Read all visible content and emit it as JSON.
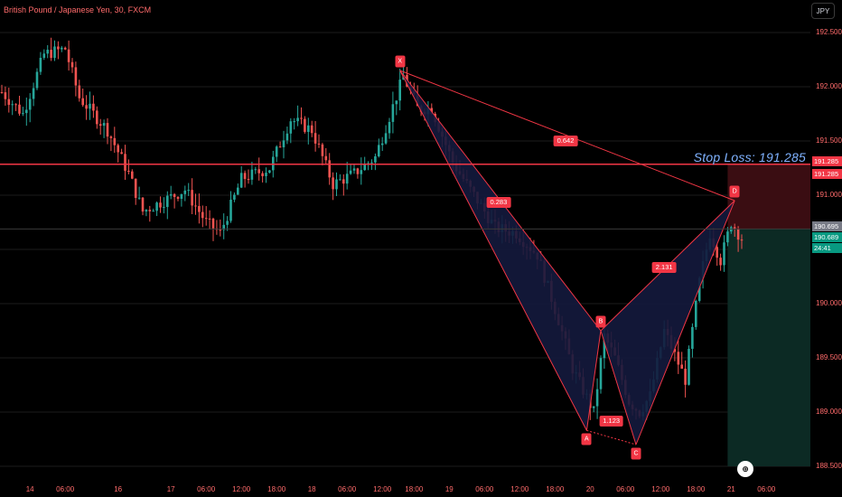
{
  "header": {
    "title": "British Pound / Japanese Yen, 30, FXCM",
    "currency": "JPY"
  },
  "stop_loss_label": "Stop Loss: 191.285",
  "colors": {
    "bull": "#26a69a",
    "bear": "#ef5350",
    "pattern_line": "#f23645",
    "pattern_fill": "#141a3d",
    "stop_zone": "#3a0d12",
    "target_zone": "#0c2a24"
  },
  "price_tags": [
    {
      "text": "191.285",
      "color": "#f23645",
      "price": 191.32
    },
    {
      "text": "191.285",
      "color": "#f23645",
      "price": 191.2
    },
    {
      "text": "190.695",
      "color": "#787b86",
      "price": 190.72
    },
    {
      "text": "190.689",
      "color": "#089981",
      "price": 190.62
    },
    {
      "text": "24:41",
      "color": "#089981",
      "price": 190.52
    }
  ],
  "chart_data": {
    "type": "candlestick",
    "title": "British Pound / Japanese Yen, 30, FXCM",
    "y_axis": {
      "ticks": [
        "192.500",
        "192.000",
        "191.500",
        "191.000",
        "190.500",
        "190.000",
        "189.500",
        "189.000",
        "188.500"
      ],
      "range": [
        188.4,
        192.8
      ],
      "position": "right"
    },
    "x_axis": {
      "ticks": [
        {
          "label": "14",
          "idx": 8
        },
        {
          "label": "06:00",
          "idx": 18
        },
        {
          "label": "16",
          "idx": 33
        },
        {
          "label": "17",
          "idx": 48
        },
        {
          "label": "06:00",
          "idx": 58
        },
        {
          "label": "12:00",
          "idx": 68
        },
        {
          "label": "18:00",
          "idx": 78
        },
        {
          "label": "18",
          "idx": 88
        },
        {
          "label": "06:00",
          "idx": 98
        },
        {
          "label": "12:00",
          "idx": 108
        },
        {
          "label": "18:00",
          "idx": 117
        },
        {
          "label": "19",
          "idx": 127
        },
        {
          "label": "06:00",
          "idx": 137
        },
        {
          "label": "12:00",
          "idx": 147
        },
        {
          "label": "18:00",
          "idx": 157
        },
        {
          "label": "20",
          "idx": 167
        },
        {
          "label": "06:00",
          "idx": 177
        },
        {
          "label": "12:00",
          "idx": 187
        },
        {
          "label": "18:00",
          "idx": 197
        },
        {
          "label": "21",
          "idx": 207
        },
        {
          "label": "06:00",
          "idx": 217
        }
      ]
    },
    "candles_count": 211,
    "anchors": [
      [
        0,
        191.95
      ],
      [
        6,
        191.75
      ],
      [
        12,
        192.3
      ],
      [
        18,
        192.35
      ],
      [
        22,
        191.9
      ],
      [
        30,
        191.6
      ],
      [
        36,
        191.2
      ],
      [
        40,
        190.85
      ],
      [
        46,
        190.95
      ],
      [
        52,
        191.05
      ],
      [
        58,
        190.75
      ],
      [
        62,
        190.65
      ],
      [
        68,
        191.15
      ],
      [
        76,
        191.25
      ],
      [
        82,
        191.7
      ],
      [
        88,
        191.6
      ],
      [
        94,
        191.1
      ],
      [
        100,
        191.2
      ],
      [
        106,
        191.35
      ],
      [
        114,
        192.1
      ],
      [
        118,
        191.8
      ],
      [
        122,
        191.8
      ],
      [
        128,
        191.3
      ],
      [
        134,
        191.0
      ],
      [
        140,
        190.7
      ],
      [
        146,
        190.65
      ],
      [
        152,
        190.45
      ],
      [
        158,
        189.85
      ],
      [
        162,
        189.4
      ],
      [
        165,
        189.2
      ],
      [
        168,
        189.0
      ],
      [
        171,
        189.7
      ],
      [
        174,
        189.5
      ],
      [
        178,
        189.1
      ],
      [
        181,
        189.0
      ],
      [
        184,
        189.15
      ],
      [
        188,
        189.75
      ],
      [
        194,
        189.3
      ],
      [
        198,
        190.2
      ],
      [
        201,
        190.65
      ],
      [
        204,
        190.4
      ],
      [
        207,
        190.75
      ],
      [
        210,
        190.6
      ]
    ],
    "harmonic_pattern": {
      "points": [
        {
          "label": "X",
          "idx": 113,
          "price": 192.15
        },
        {
          "label": "A",
          "idx": 166,
          "price": 188.83
        },
        {
          "label": "B",
          "idx": 170,
          "price": 189.75
        },
        {
          "label": "C",
          "idx": 180,
          "price": 188.7
        },
        {
          "label": "D",
          "idx": 208,
          "price": 190.95
        }
      ],
      "ratios": [
        {
          "label": "0.642",
          "idx": 160,
          "price": 191.5
        },
        {
          "label": "0.283",
          "idx": 141,
          "price": 190.93
        },
        {
          "label": "2.131",
          "idx": 188,
          "price": 190.33
        },
        {
          "label": "1.123",
          "idx": 173,
          "price": 188.92
        }
      ]
    },
    "stop_loss": 191.285,
    "entry": 190.689,
    "target_zone_bottom": 188.5
  }
}
